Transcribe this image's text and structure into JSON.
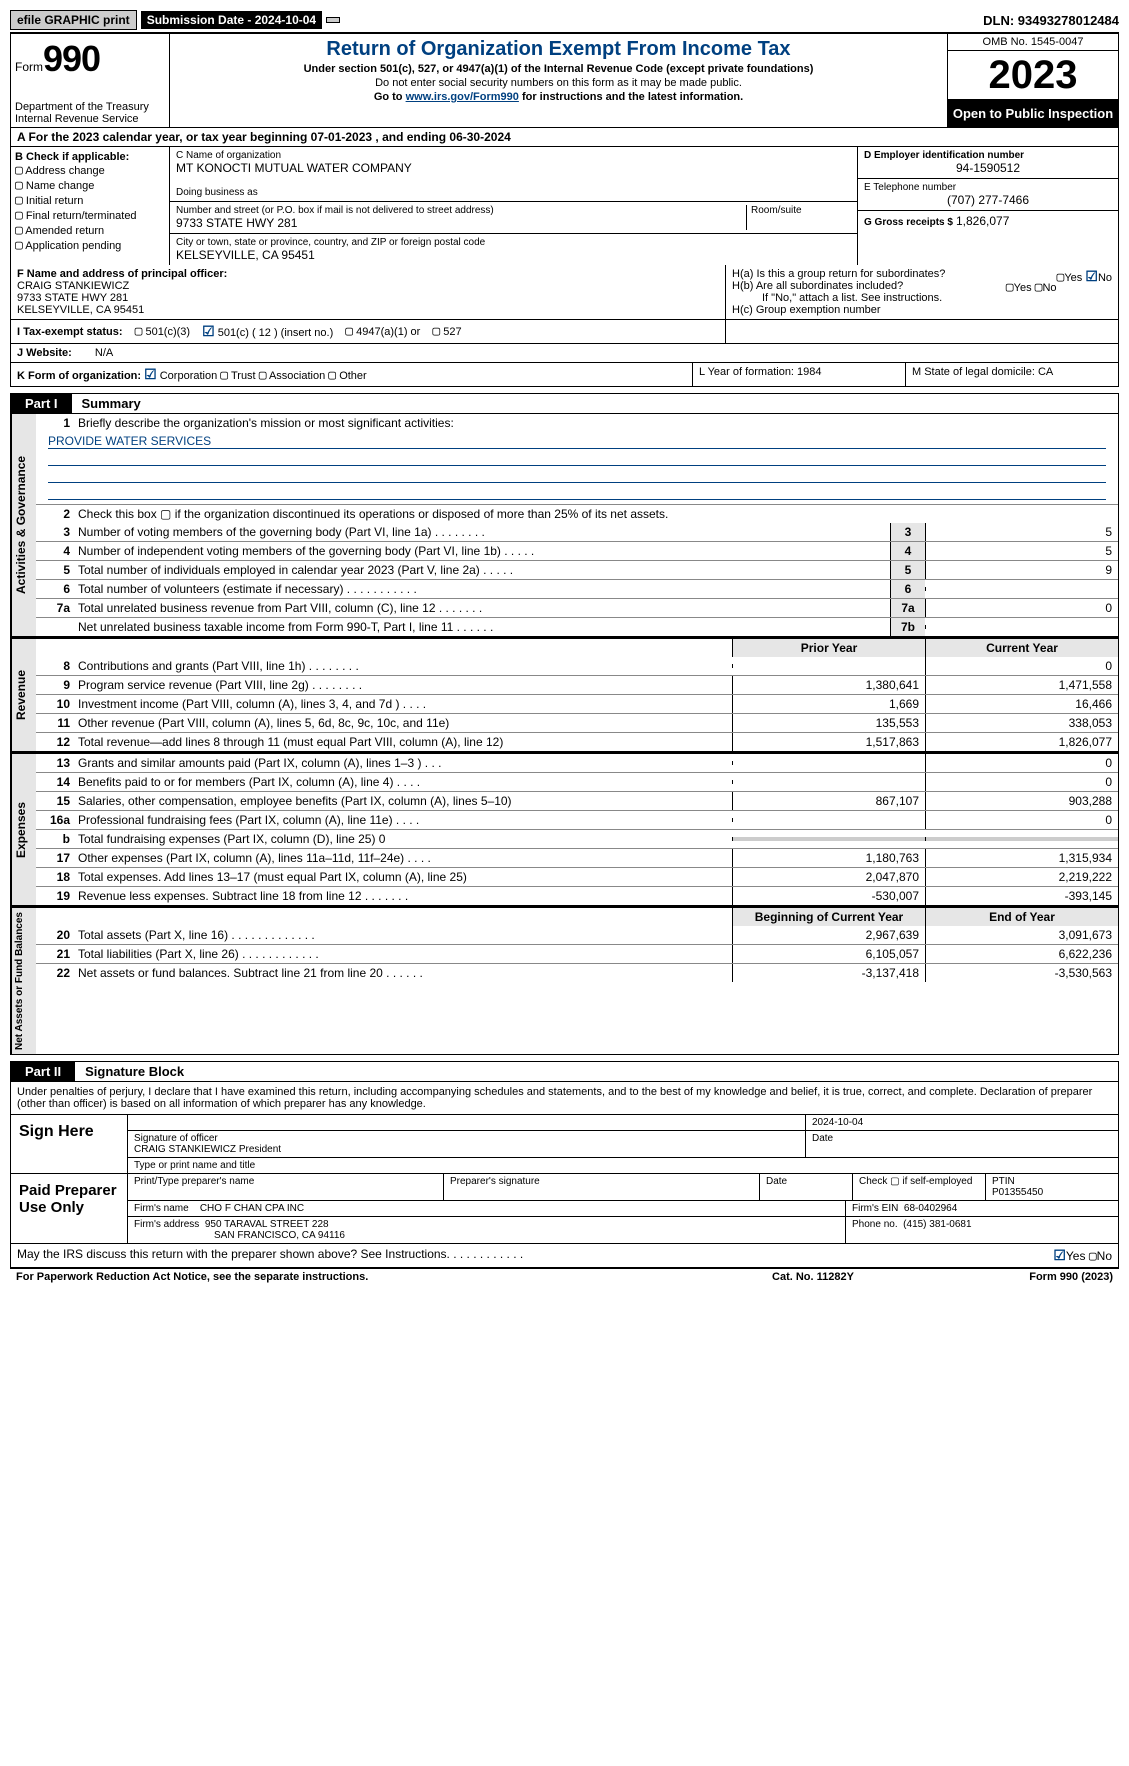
{
  "top": {
    "efile": "efile GRAPHIC print",
    "submission": "Submission Date - 2024-10-04",
    "dln": "DLN: 93493278012484"
  },
  "header": {
    "form_word": "Form",
    "form_number": "990",
    "dept": "Department of the Treasury\nInternal Revenue Service",
    "title": "Return of Organization Exempt From Income Tax",
    "sub1": "Under section 501(c), 527, or 4947(a)(1) of the Internal Revenue Code (except private foundations)",
    "sub2": "Do not enter social security numbers on this form as it may be made public.",
    "sub3_pre": "Go to ",
    "sub3_link": "www.irs.gov/Form990",
    "sub3_post": " for instructions and the latest information.",
    "omb": "OMB No. 1545-0047",
    "year": "2023",
    "open": "Open to Public Inspection"
  },
  "rowA_pre": "A For the 2023 calendar year, or tax year beginning ",
  "rowA_begin": "07-01-2023",
  "rowA_mid": "   , and ending ",
  "rowA_end": "06-30-2024",
  "boxB": {
    "title": "B Check if applicable:",
    "items": [
      "Address change",
      "Name change",
      "Initial return",
      "Final return/terminated",
      "Amended return",
      "Application pending"
    ]
  },
  "boxC": {
    "name_label": "C Name of organization",
    "name": "MT KONOCTI MUTUAL WATER COMPANY",
    "dba_label": "Doing business as",
    "addr_label": "Number and street (or P.O. box if mail is not delivered to street address)",
    "addr": "9733 STATE HWY 281",
    "room_label": "Room/suite",
    "city_label": "City or town, state or province, country, and ZIP or foreign postal code",
    "city": "KELSEYVILLE, CA  95451"
  },
  "boxD": {
    "ein_label": "D Employer identification number",
    "ein": "94-1590512",
    "phone_label": "E Telephone number",
    "phone": "(707) 277-7466",
    "receipts_label": "G Gross receipts $",
    "receipts": "1,826,077"
  },
  "boxF": {
    "label": "F  Name and address of principal officer:",
    "name": "CRAIG STANKIEWICZ",
    "addr": "9733 STATE HWY 281",
    "city": "KELSEYVILLE, CA  95451"
  },
  "boxH": {
    "ha": "H(a)  Is this a group return for subordinates?",
    "hb": "H(b)  Are all subordinates included?",
    "hb_note": "If \"No,\" attach a list. See instructions.",
    "hc": "H(c)  Group exemption number"
  },
  "taxI": {
    "label": "I   Tax-exempt status:",
    "c3": "501(c)(3)",
    "c_ins": "501(c) ( 12 ) (insert no.)",
    "a4947": "4947(a)(1) or",
    "s527": "527"
  },
  "rowJ": {
    "label": "J   Website:",
    "val": "N/A"
  },
  "rowK": {
    "label": "K Form of organization:",
    "corp": "Corporation",
    "trust": "Trust",
    "assoc": "Association",
    "other": "Other",
    "L": "L Year of formation: 1984",
    "M": "M State of legal domicile: CA"
  },
  "part1": {
    "label": "Part I",
    "title": "Summary"
  },
  "governance": {
    "label": "Activities & Governance",
    "l1": "Briefly describe the organization's mission or most significant activities:",
    "mission": "PROVIDE WATER SERVICES",
    "l2": "Check this box  ▢  if the organization discontinued its operations or disposed of more than 25% of its net assets.",
    "rows": [
      {
        "n": "3",
        "t": "Number of voting members of the governing body (Part VI, line 1a)   .   .   .   .   .   .   .   .",
        "b": "3",
        "v": "5"
      },
      {
        "n": "4",
        "t": "Number of independent voting members of the governing body (Part VI, line 1b)   .   .   .   .   .",
        "b": "4",
        "v": "5"
      },
      {
        "n": "5",
        "t": "Total number of individuals employed in calendar year 2023 (Part V, line 2a)   .   .   .   .   .",
        "b": "5",
        "v": "9"
      },
      {
        "n": "6",
        "t": "Total number of volunteers (estimate if necessary)   .   .   .   .   .   .   .   .   .   .   .",
        "b": "6",
        "v": ""
      },
      {
        "n": "7a",
        "t": "Total unrelated business revenue from Part VIII, column (C), line 12   .   .   .   .   .   .   .",
        "b": "7a",
        "v": "0"
      },
      {
        "n": "",
        "t": "Net unrelated business taxable income from Form 990-T, Part I, line 11   .   .   .   .   .   .",
        "b": "7b",
        "v": ""
      }
    ]
  },
  "revenue": {
    "label": "Revenue",
    "hdr_prior": "Prior Year",
    "hdr_curr": "Current Year",
    "rows": [
      {
        "n": "8",
        "t": "Contributions and grants (Part VIII, line 1h)   .   .   .   .   .   .   .   .",
        "p": "",
        "c": "0"
      },
      {
        "n": "9",
        "t": "Program service revenue (Part VIII, line 2g)   .   .   .   .   .   .   .   .",
        "p": "1,380,641",
        "c": "1,471,558"
      },
      {
        "n": "10",
        "t": "Investment income (Part VIII, column (A), lines 3, 4, and 7d )   .   .   .   .",
        "p": "1,669",
        "c": "16,466"
      },
      {
        "n": "11",
        "t": "Other revenue (Part VIII, column (A), lines 5, 6d, 8c, 9c, 10c, and 11e)",
        "p": "135,553",
        "c": "338,053"
      },
      {
        "n": "12",
        "t": "Total revenue—add lines 8 through 11 (must equal Part VIII, column (A), line 12)",
        "p": "1,517,863",
        "c": "1,826,077"
      }
    ]
  },
  "expenses": {
    "label": "Expenses",
    "rows": [
      {
        "n": "13",
        "t": "Grants and similar amounts paid (Part IX, column (A), lines 1–3 )   .   .   .",
        "p": "",
        "c": "0"
      },
      {
        "n": "14",
        "t": "Benefits paid to or for members (Part IX, column (A), line 4)   .   .   .   .",
        "p": "",
        "c": "0"
      },
      {
        "n": "15",
        "t": "Salaries, other compensation, employee benefits (Part IX, column (A), lines 5–10)",
        "p": "867,107",
        "c": "903,288"
      },
      {
        "n": "16a",
        "t": "Professional fundraising fees (Part IX, column (A), line 11e)   .   .   .   .",
        "p": "",
        "c": "0"
      },
      {
        "n": "b",
        "t": "Total fundraising expenses (Part IX, column (D), line 25) 0",
        "p": "grey",
        "c": "grey"
      },
      {
        "n": "17",
        "t": "Other expenses (Part IX, column (A), lines 11a–11d, 11f–24e)   .   .   .   .",
        "p": "1,180,763",
        "c": "1,315,934"
      },
      {
        "n": "18",
        "t": "Total expenses. Add lines 13–17 (must equal Part IX, column (A), line 25)",
        "p": "2,047,870",
        "c": "2,219,222"
      },
      {
        "n": "19",
        "t": "Revenue less expenses. Subtract line 18 from line 12   .   .   .   .   .   .   .",
        "p": "-530,007",
        "c": "-393,145"
      }
    ]
  },
  "netassets": {
    "label": "Net Assets or Fund Balances",
    "hdr_prior": "Beginning of Current Year",
    "hdr_curr": "End of Year",
    "rows": [
      {
        "n": "20",
        "t": "Total assets (Part X, line 16)   .   .   .   .   .   .   .   .   .   .   .   .   .",
        "p": "2,967,639",
        "c": "3,091,673"
      },
      {
        "n": "21",
        "t": "Total liabilities (Part X, line 26)   .   .   .   .   .   .   .   .   .   .   .   .",
        "p": "6,105,057",
        "c": "6,622,236"
      },
      {
        "n": "22",
        "t": "Net assets or fund balances. Subtract line 21 from line 20   .   .   .   .   .   .",
        "p": "-3,137,418",
        "c": "-3,530,563"
      }
    ]
  },
  "part2": {
    "label": "Part II",
    "title": "Signature Block"
  },
  "penalty": "Under penalties of perjury, I declare that I have examined this return, including accompanying schedules and statements, and to the best of my knowledge and belief, it is true, correct, and complete. Declaration of preparer (other than officer) is based on all information of which preparer has any knowledge.",
  "sign": {
    "label": "Sign Here",
    "date": "2024-10-04",
    "sig_label": "Signature of officer",
    "name": "CRAIG STANKIEWICZ  President",
    "type_label": "Type or print name and title",
    "date_label": "Date"
  },
  "preparer": {
    "label": "Paid Preparer Use Only",
    "print_label": "Print/Type preparer's name",
    "psig_label": "Preparer's signature",
    "pdate_label": "Date",
    "check_label": "Check ▢ if self-employed",
    "ptin_label": "PTIN",
    "ptin": "P01355450",
    "firm_name_label": "Firm's name",
    "firm_name": "CHO F CHAN CPA INC",
    "firm_ein_label": "Firm's EIN",
    "firm_ein": "68-0402964",
    "firm_addr_label": "Firm's address",
    "firm_addr": "950 TARAVAL STREET 228",
    "firm_city": "SAN FRANCISCO, CA  94116",
    "firm_phone_label": "Phone no.",
    "firm_phone": "(415) 381-0681"
  },
  "discuss": "May the IRS discuss this return with the preparer shown above? See Instructions.   .   .   .   .   .   .   .   .   .   .   .",
  "footer": {
    "left": "For Paperwork Reduction Act Notice, see the separate instructions.",
    "center": "Cat. No. 11282Y",
    "right": "Form 990 (2023)"
  }
}
